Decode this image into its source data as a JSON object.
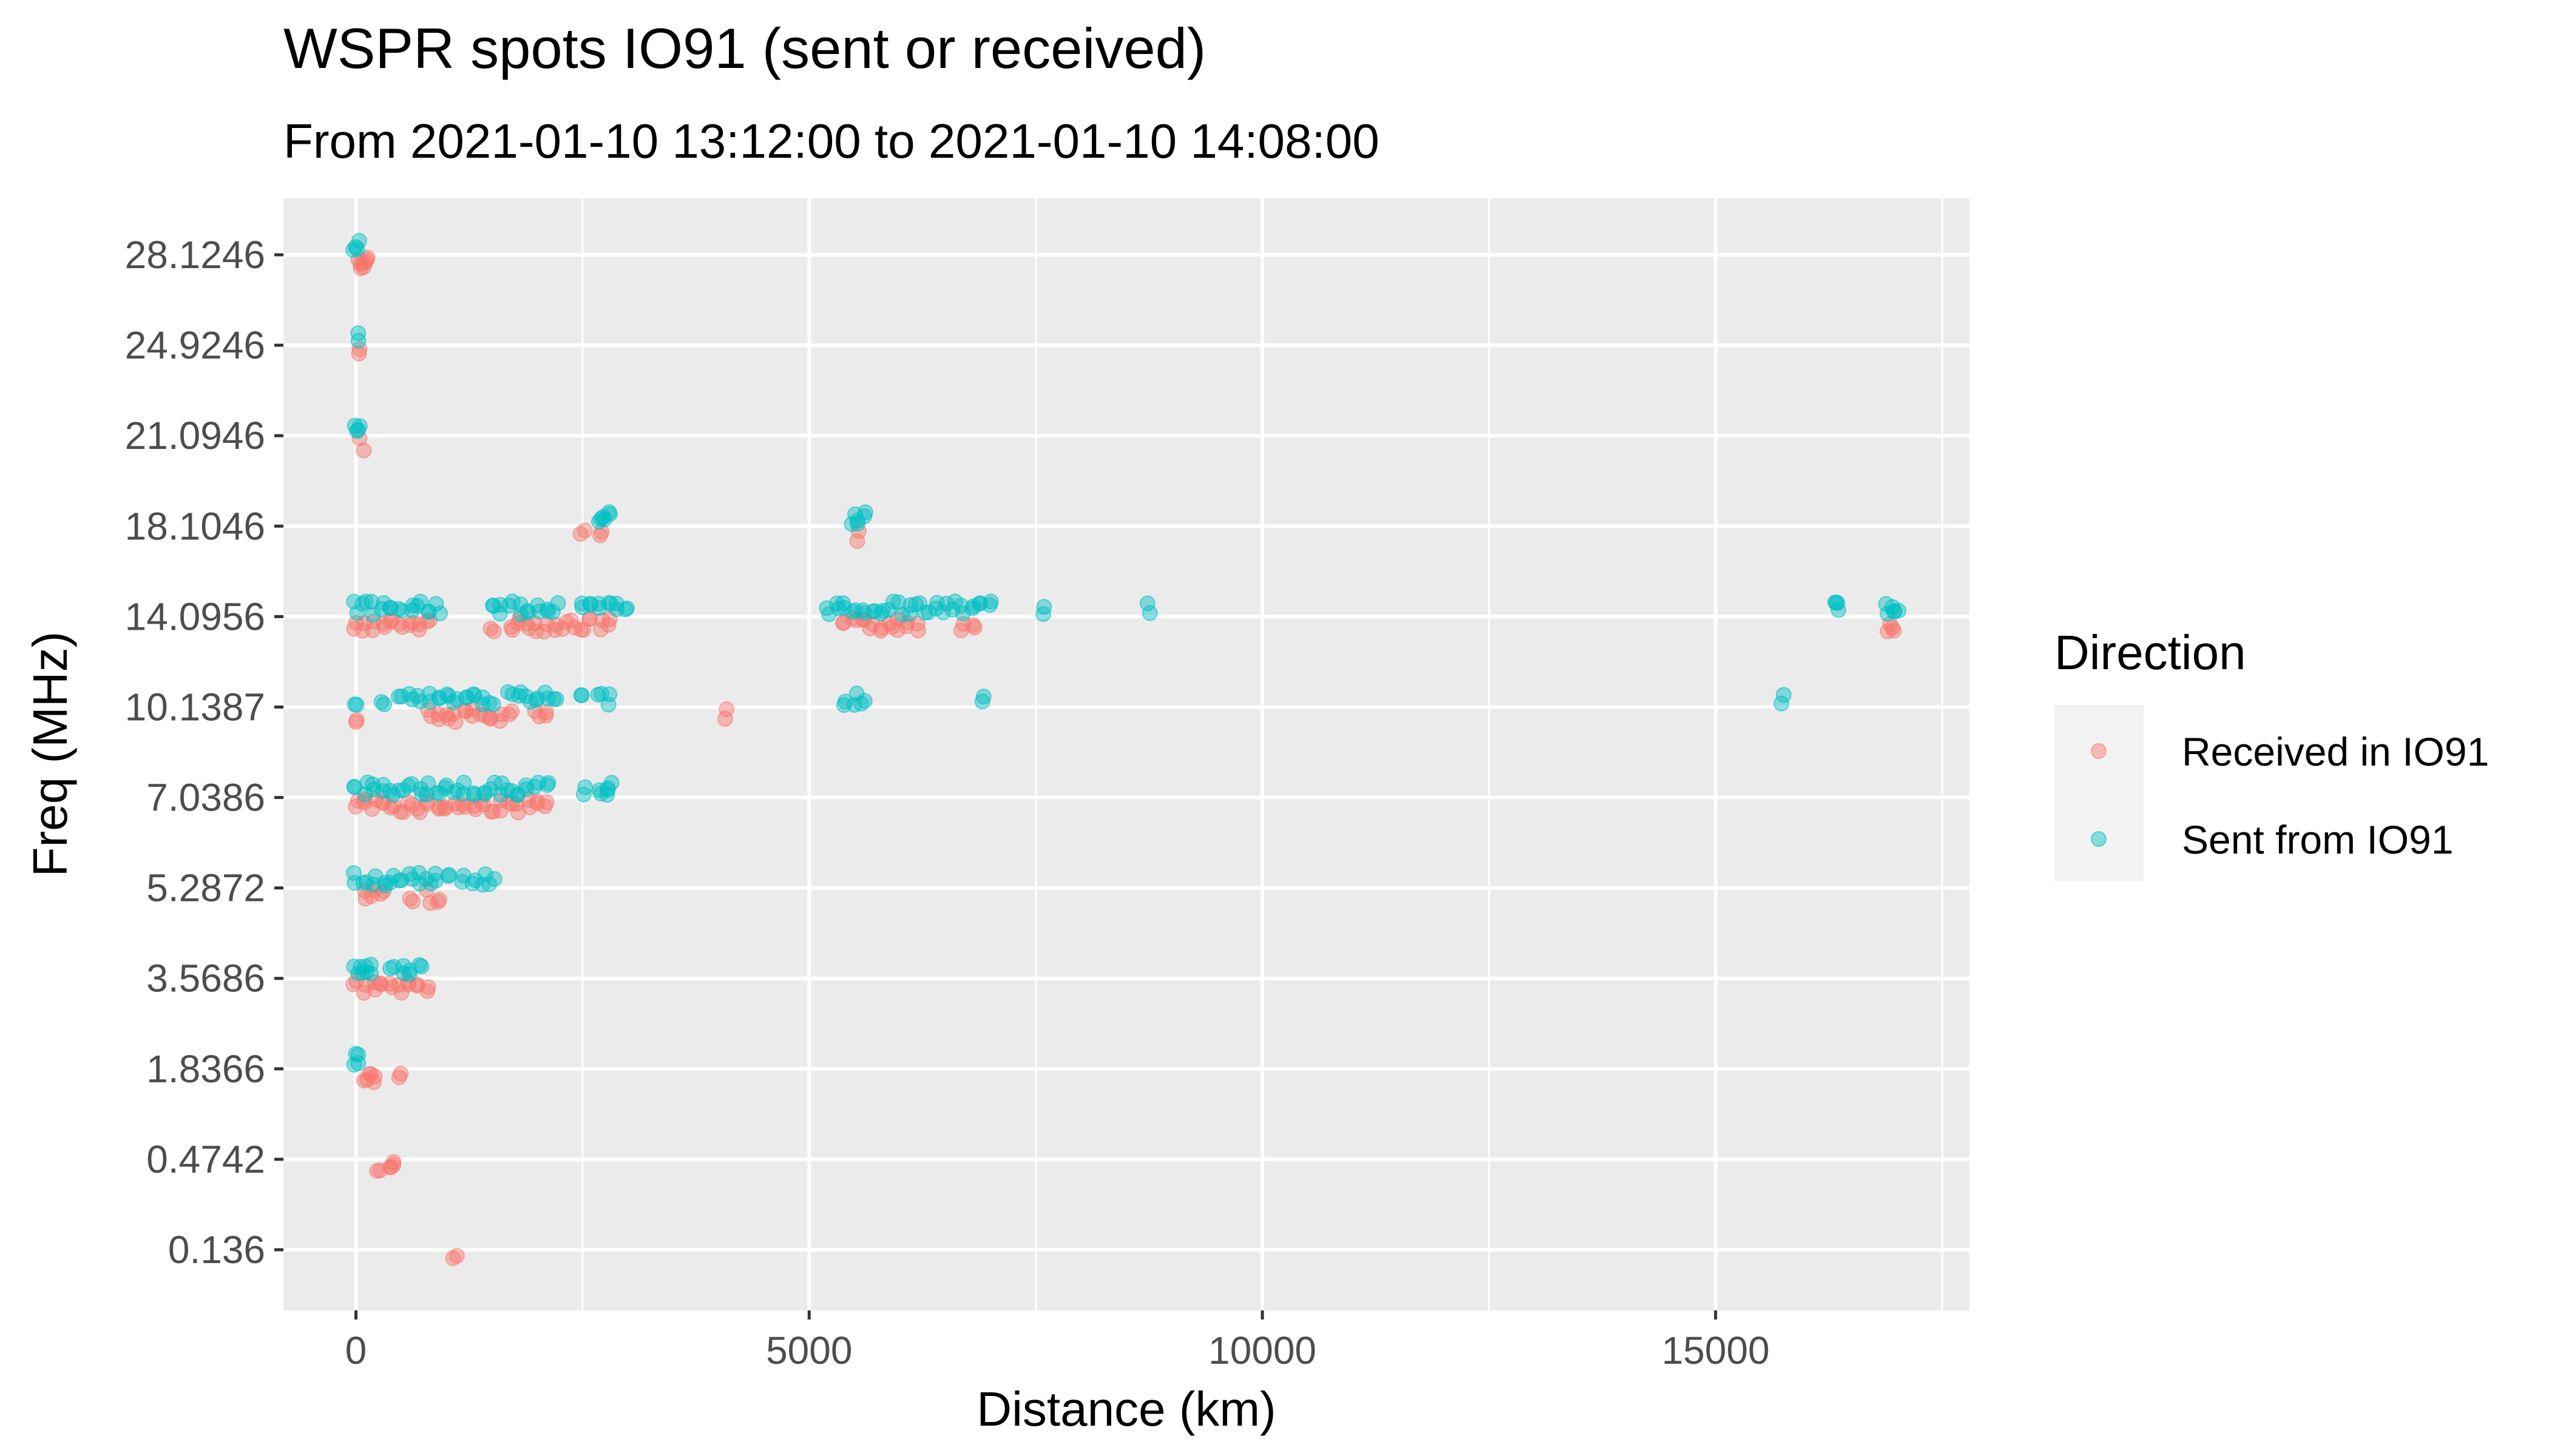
{
  "chart_data": {
    "type": "scatter",
    "title": "WSPR spots IO91 (sent or received)",
    "subtitle": "From 2021-01-10 13:12:00 to 2021-01-10 14:08:00",
    "xlabel": "Distance (km)",
    "ylabel": "Freq (MHz)",
    "x_ticks": [
      "0",
      "5000",
      "10000",
      "15000"
    ],
    "x_tick_values": [
      0,
      5000,
      10000,
      15000
    ],
    "xlim": [
      -800,
      17800
    ],
    "y_categories": [
      "0.136",
      "0.4742",
      "1.8366",
      "3.5686",
      "5.2872",
      "7.0386",
      "10.1387",
      "14.0956",
      "18.1046",
      "21.0946",
      "24.9246",
      "28.1246"
    ],
    "grid": true,
    "legend": {
      "title": "Direction",
      "position": "right",
      "entries": [
        {
          "name": "Received in IO91",
          "color": "#F8766D"
        },
        {
          "name": "Sent from IO91",
          "color": "#00BFC4"
        }
      ]
    },
    "series": [
      {
        "name": "Received in IO91",
        "color": "#F8766D",
        "points": [
          {
            "freq": "28.1246",
            "x": [
              50,
              80,
              100,
              120
            ]
          },
          {
            "freq": "24.9246",
            "x": [
              30
            ]
          },
          {
            "freq": "21.0946",
            "x": [
              60
            ]
          },
          {
            "freq": "18.1046",
            "x": [
              2500,
              2700,
              5550
            ]
          },
          {
            "freq": "14.0956",
            "x": [
              0,
              100,
              200,
              300,
              400,
              500,
              600,
              700,
              800,
              1500,
              1700,
              1800,
              1900,
              2000,
              2100,
              2200,
              2300,
              2400,
              2500,
              2600,
              2700,
              2800,
              5400,
              5500,
              5600,
              5700,
              5800,
              5900,
              6000,
              6100,
              6200,
              6700,
              6800,
              16900,
              16950
            ]
          },
          {
            "freq": "10.1387",
            "x": [
              0,
              800,
              900,
              1000,
              1100,
              1200,
              1300,
              1400,
              1500,
              1600,
              1700,
              2000,
              2100,
              4100
            ]
          },
          {
            "freq": "7.0386",
            "x": [
              0,
              100,
              200,
              300,
              400,
              500,
              600,
              700,
              800,
              900,
              1000,
              1100,
              1200,
              1300,
              1400,
              1500,
              1600,
              1700,
              1800,
              1900,
              2000,
              2100
            ]
          },
          {
            "freq": "5.2872",
            "x": [
              100,
              200,
              300,
              600,
              800,
              900
            ]
          },
          {
            "freq": "3.5686",
            "x": [
              0,
              100,
              200,
              300,
              400,
              500,
              600,
              700,
              800
            ]
          },
          {
            "freq": "1.8366",
            "x": [
              100,
              150,
              200,
              500
            ]
          },
          {
            "freq": "0.4742",
            "x": [
              250,
              400,
              420
            ]
          },
          {
            "freq": "0.136",
            "x": [
              1100
            ]
          }
        ]
      },
      {
        "name": "Sent from IO91",
        "color": "#00BFC4",
        "points": [
          {
            "freq": "28.1246",
            "x": [
              0,
              20
            ]
          },
          {
            "freq": "24.9246",
            "x": [
              0
            ]
          },
          {
            "freq": "21.0946",
            "x": [
              0,
              20
            ]
          },
          {
            "freq": "18.1046",
            "x": [
              2700,
              2750,
              2800,
              5500,
              5550,
              5600
            ]
          },
          {
            "freq": "14.0956",
            "x": [
              0,
              100,
              200,
              300,
              400,
              500,
              600,
              700,
              800,
              900,
              1500,
              1600,
              1700,
              1800,
              1900,
              2000,
              2100,
              2200,
              2500,
              2600,
              2700,
              2800,
              2900,
              3000,
              5200,
              5300,
              5400,
              5500,
              5600,
              5700,
              5800,
              5900,
              6000,
              6100,
              6200,
              6300,
              6400,
              6500,
              6600,
              6700,
              6800,
              6900,
              7000,
              7600,
              8750,
              16300,
              16350,
              16900,
              16950,
              17000
            ]
          },
          {
            "freq": "10.1387",
            "x": [
              0,
              300,
              500,
              600,
              700,
              800,
              900,
              1000,
              1100,
              1200,
              1300,
              1400,
              1500,
              1700,
              1800,
              1900,
              2000,
              2100,
              2200,
              2500,
              2700,
              2800,
              5400,
              5500,
              5600,
              6900,
              15750
            ]
          },
          {
            "freq": "7.0386",
            "x": [
              0,
              100,
              200,
              300,
              400,
              500,
              600,
              700,
              800,
              900,
              1000,
              1100,
              1200,
              1300,
              1400,
              1500,
              1600,
              1700,
              1800,
              1900,
              2000,
              2100,
              2500,
              2700,
              2750,
              2800
            ]
          },
          {
            "freq": "5.2872",
            "x": [
              0,
              100,
              200,
              300,
              400,
              500,
              600,
              700,
              800,
              900,
              1000,
              1200,
              1300,
              1400,
              1500
            ]
          },
          {
            "freq": "3.5686",
            "x": [
              0,
              50,
              100,
              150,
              400,
              500,
              600,
              700
            ]
          },
          {
            "freq": "1.8366",
            "x": [
              0,
              20
            ]
          }
        ]
      }
    ]
  }
}
